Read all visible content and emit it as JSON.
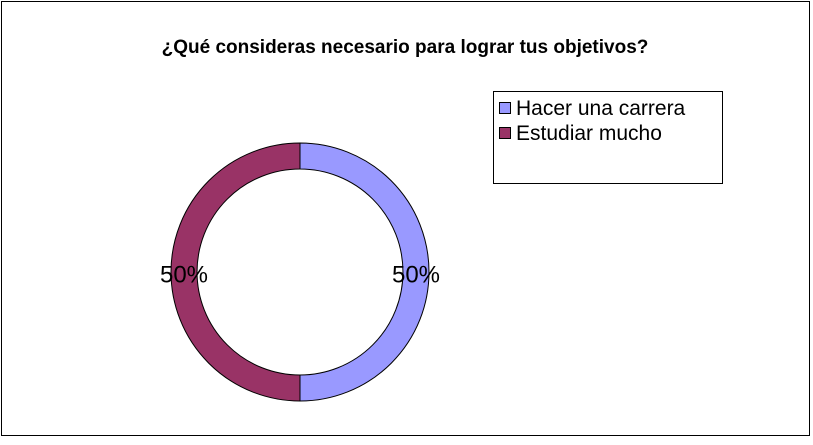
{
  "chart_data": {
    "type": "donut",
    "title": "¿Qué consideras necesario para lograr tus objetivos?",
    "categories": [
      "Hacer una carrera",
      "Estudiar mucho"
    ],
    "values": [
      50,
      50
    ],
    "value_labels": [
      "50%",
      "50%"
    ],
    "colors": [
      "#9999ff",
      "#993366"
    ],
    "legend": "top-right"
  }
}
